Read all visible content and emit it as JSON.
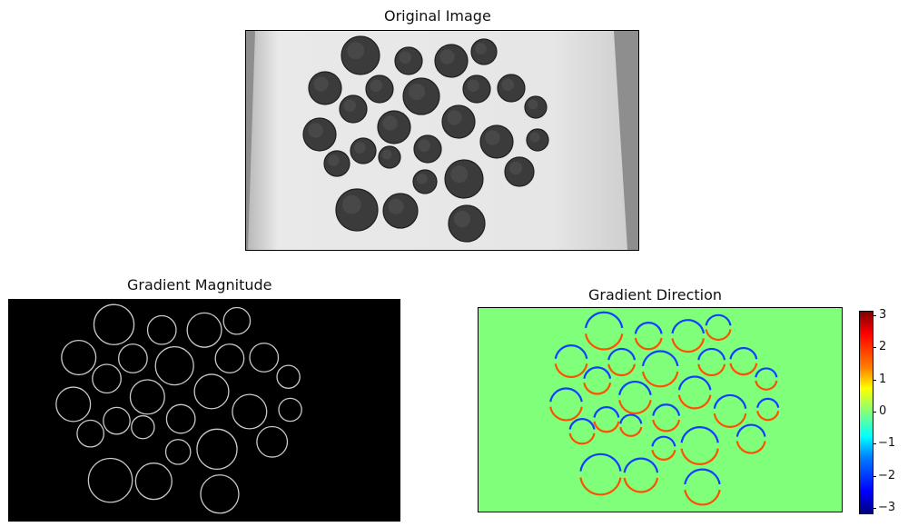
{
  "panels": {
    "original": {
      "title": "Original Image"
    },
    "magnitude": {
      "title": "Gradient Magnitude"
    },
    "direction": {
      "title": "Gradient Direction"
    }
  },
  "colorbar": {
    "ticks": [
      "3",
      "2",
      "1",
      "0",
      "−1",
      "−2",
      "−3"
    ],
    "colormap": "jet",
    "range": [
      -3.14,
      3.14
    ]
  },
  "colors": {
    "paper": "#e6e6e6",
    "coin": "#3a3a3a",
    "magnitude_bg": "#000000",
    "direction_bg": "#80ff7a"
  }
}
